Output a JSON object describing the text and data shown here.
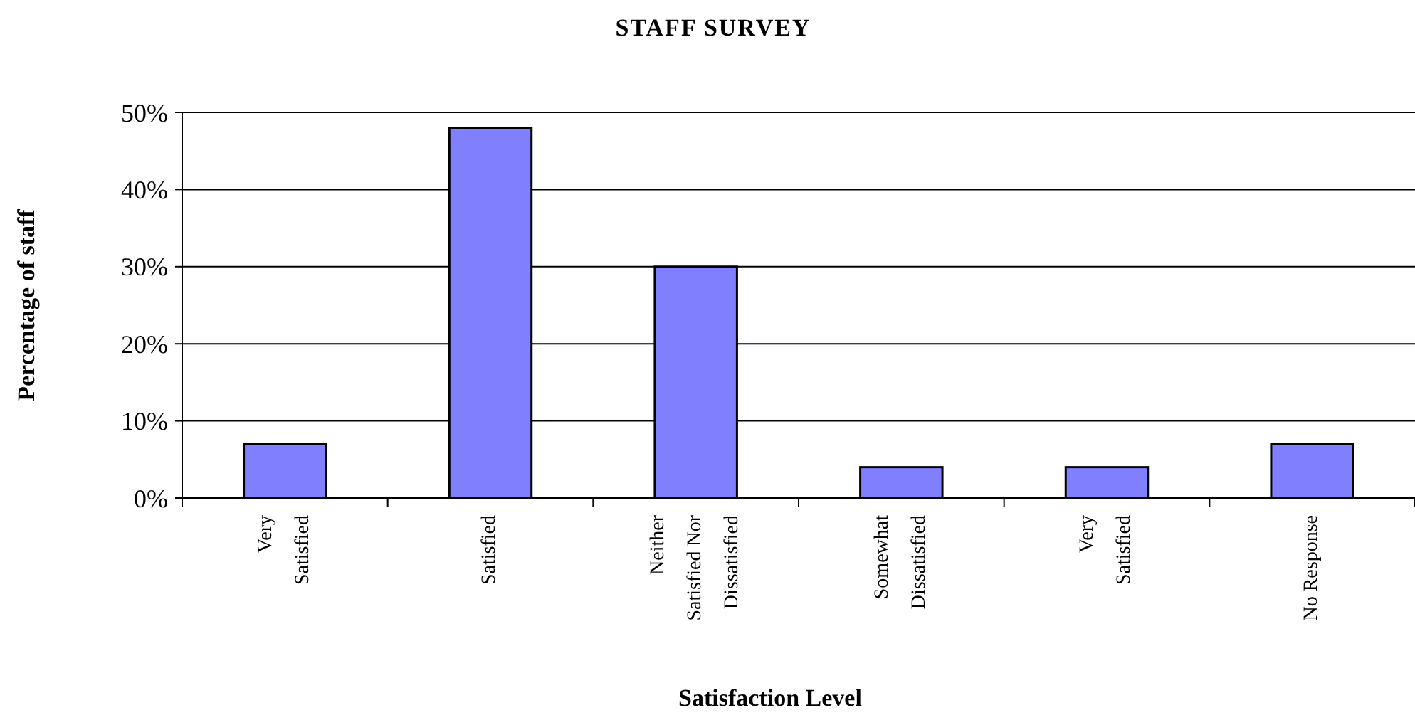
{
  "chart_data": {
    "type": "bar",
    "title": "STAFF SURVEY",
    "xlabel": "Satisfaction Level",
    "ylabel": "Percentage of staff",
    "categories": [
      "Very Satisfied",
      "Satisfied",
      "Neither Satisfied Nor Dissatisfied",
      "Somewhat Dissatisfied",
      "Very Satisfied",
      "No Response"
    ],
    "values": [
      7,
      48,
      30,
      4,
      4,
      7
    ],
    "color": "#8080ff",
    "ylim": [
      0,
      50
    ],
    "yticks": [
      {
        "value": 0,
        "label": "0%"
      },
      {
        "value": 10,
        "label": "10%"
      },
      {
        "value": 20,
        "label": "20%"
      },
      {
        "value": 30,
        "label": "30%"
      },
      {
        "value": 40,
        "label": "40%"
      },
      {
        "value": 50,
        "label": "50%"
      }
    ],
    "grid": "y"
  }
}
